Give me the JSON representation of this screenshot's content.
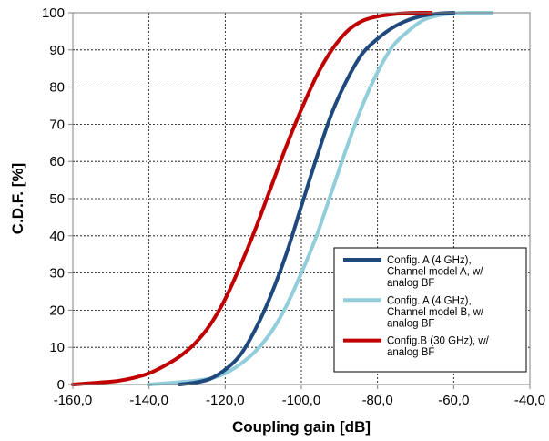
{
  "chart_data": {
    "type": "line",
    "xlabel": "Coupling gain [dB]",
    "ylabel": "C.D.F. [%]",
    "xlim": [
      -160,
      -40
    ],
    "ylim": [
      0,
      100
    ],
    "x_ticks": [
      -160,
      -140,
      -120,
      -100,
      -80,
      -60,
      -40
    ],
    "x_tick_labels": [
      "-160,0",
      "-140,0",
      "-120,0",
      "-100,0",
      "-80,0",
      "-60,0",
      "-40,0"
    ],
    "y_ticks": [
      0,
      10,
      20,
      30,
      40,
      50,
      60,
      70,
      80,
      90,
      100
    ],
    "y_tick_labels": [
      "0",
      "10",
      "20",
      "30",
      "40",
      "50",
      "60",
      "70",
      "80",
      "90",
      "100"
    ],
    "grid": true,
    "legend_position": "bottom-right",
    "series": [
      {
        "name": "Config. A (4 GHz), Channel model A, w/ analog BF",
        "name_lines": [
          "Config. A (4 GHz),",
          "Channel model A, w/",
          "analog BF"
        ],
        "color": "#1f497d",
        "points": [
          [
            -132,
            0
          ],
          [
            -128,
            0.5
          ],
          [
            -124,
            1.5
          ],
          [
            -120,
            4
          ],
          [
            -116,
            8
          ],
          [
            -112,
            15
          ],
          [
            -108,
            24
          ],
          [
            -104,
            35
          ],
          [
            -100,
            48
          ],
          [
            -96,
            61
          ],
          [
            -92,
            73
          ],
          [
            -88,
            82
          ],
          [
            -84,
            89
          ],
          [
            -80,
            93
          ],
          [
            -76,
            96
          ],
          [
            -72,
            98
          ],
          [
            -68,
            99.2
          ],
          [
            -64,
            99.8
          ],
          [
            -60,
            100
          ]
        ]
      },
      {
        "name": "Config. A (4 GHz), Channel model B, w/ analog BF",
        "name_lines": [
          "Config. A (4 GHz),",
          "Channel model B, w/",
          "analog BF"
        ],
        "color": "#92cddc",
        "points": [
          [
            -140,
            0
          ],
          [
            -136,
            0.3
          ],
          [
            -132,
            0.6
          ],
          [
            -128,
            1
          ],
          [
            -124,
            1.6
          ],
          [
            -120,
            3
          ],
          [
            -116,
            5.5
          ],
          [
            -112,
            9
          ],
          [
            -108,
            14
          ],
          [
            -104,
            21
          ],
          [
            -100,
            30
          ],
          [
            -96,
            40
          ],
          [
            -92,
            52
          ],
          [
            -88,
            64
          ],
          [
            -84,
            75
          ],
          [
            -80,
            84
          ],
          [
            -76,
            91
          ],
          [
            -72,
            95
          ],
          [
            -68,
            98
          ],
          [
            -64,
            99.3
          ],
          [
            -60,
            99.8
          ],
          [
            -56,
            100
          ],
          [
            -50,
            100
          ]
        ]
      },
      {
        "name": "Config.B (30 GHz), w/ analog BF",
        "name_lines": [
          "Config.B (30 GHz), w/",
          "analog BF"
        ],
        "color": "#c00000",
        "points": [
          [
            -160,
            0
          ],
          [
            -156,
            0.3
          ],
          [
            -152,
            0.6
          ],
          [
            -148,
            1
          ],
          [
            -144,
            1.8
          ],
          [
            -140,
            3
          ],
          [
            -136,
            5
          ],
          [
            -132,
            7.5
          ],
          [
            -128,
            11
          ],
          [
            -124,
            16
          ],
          [
            -120,
            23
          ],
          [
            -116,
            32
          ],
          [
            -112,
            42
          ],
          [
            -108,
            53
          ],
          [
            -104,
            64
          ],
          [
            -100,
            74
          ],
          [
            -96,
            83
          ],
          [
            -92,
            90
          ],
          [
            -88,
            95
          ],
          [
            -84,
            97.8
          ],
          [
            -80,
            99
          ],
          [
            -76,
            99.6
          ],
          [
            -72,
            99.9
          ],
          [
            -68,
            100
          ],
          [
            -66,
            100
          ]
        ]
      }
    ]
  }
}
